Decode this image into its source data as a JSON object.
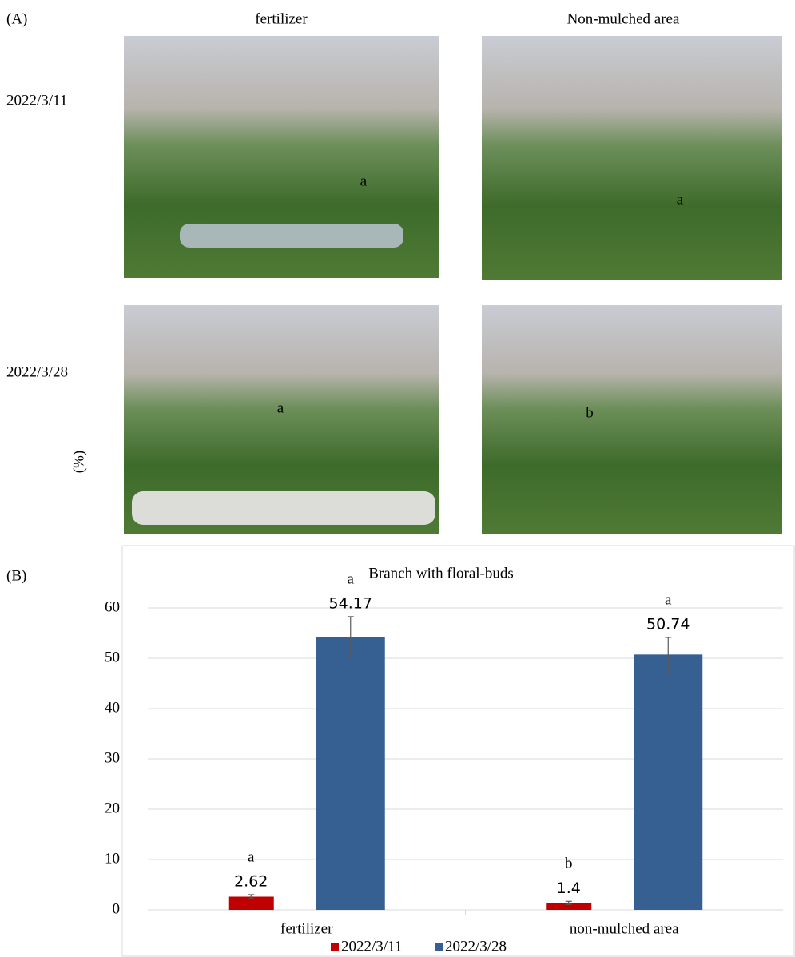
{
  "panel_a": {
    "label": "(A)",
    "columns": [
      "fertilizer",
      "Non-mulched area"
    ],
    "rows": [
      "2022/3/11",
      "2022/3/28"
    ],
    "photo_letters": [
      [
        "a",
        "a"
      ],
      [
        "a",
        "b"
      ]
    ]
  },
  "panel_b_label": "(B)",
  "chart_data": {
    "type": "bar",
    "title": "Branch with floral-buds",
    "y_label": "(%)",
    "categories": [
      "fertilizer",
      "non-mulched area"
    ],
    "series": [
      {
        "name": "2022/3/11",
        "color": "#c00000",
        "values": [
          2.62,
          1.4
        ],
        "errors": [
          0.4,
          0.3
        ],
        "letters": [
          "a",
          "b"
        ]
      },
      {
        "name": "2022/3/28",
        "color": "#376092",
        "values": [
          54.17,
          50.74
        ],
        "errors": [
          4.1,
          3.4
        ],
        "letters": [
          "a",
          "a"
        ]
      }
    ],
    "ylim": [
      0,
      60
    ],
    "yticks": [
      0,
      10,
      20,
      30,
      40,
      50,
      60
    ],
    "grid": true
  }
}
